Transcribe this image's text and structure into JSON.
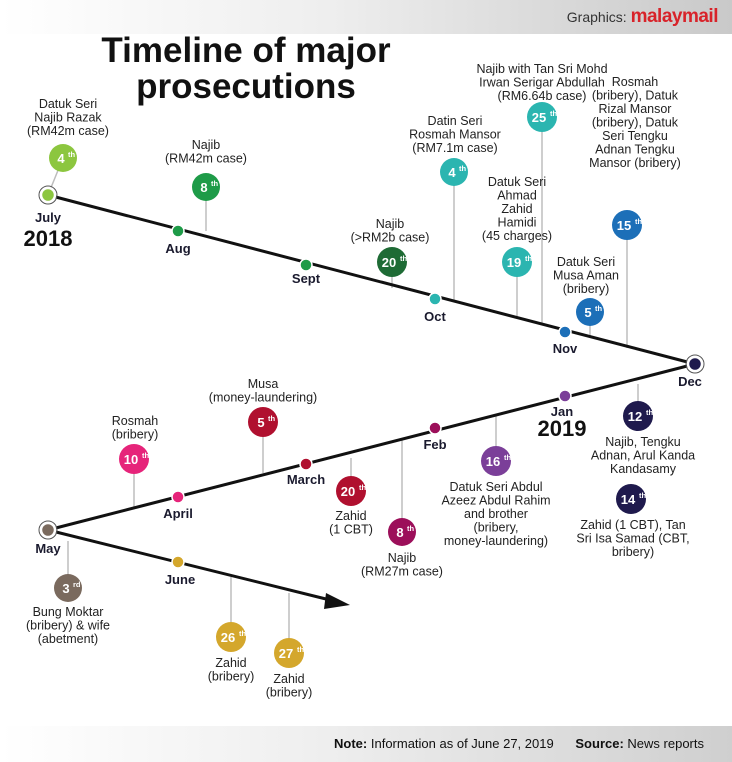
{
  "header": {
    "credit_prefix": "Graphics:",
    "credit_brand": "malaymail"
  },
  "title": "Timeline of major prosecutions",
  "footer": {
    "note_label": "Note:",
    "note_text": "Information as of June 27, 2019",
    "source_label": "Source:",
    "source_text": "News reports"
  },
  "colors": {
    "line": "#111111",
    "leader": "#bdbdbd"
  },
  "months": [
    {
      "id": "jul",
      "label": "July",
      "year": "2018",
      "color": "#8cc63f"
    },
    {
      "id": "aug",
      "label": "Aug",
      "color": "#1e9b48"
    },
    {
      "id": "sep",
      "label": "Sept",
      "color": "#1e9b48"
    },
    {
      "id": "oct",
      "label": "Oct",
      "color": "#2bb5b0"
    },
    {
      "id": "nov",
      "label": "Nov",
      "color": "#1c6fb8"
    },
    {
      "id": "dec",
      "label": "Dec",
      "color": "#1f1a4d"
    },
    {
      "id": "jan",
      "label": "Jan",
      "year": "2019",
      "color": "#7b3f99"
    },
    {
      "id": "feb",
      "label": "Feb",
      "color": "#9c0f5a"
    },
    {
      "id": "mar",
      "label": "March",
      "color": "#b0102f"
    },
    {
      "id": "apr",
      "label": "April",
      "color": "#e6247a"
    },
    {
      "id": "may",
      "label": "May",
      "color": "#7a6a5e"
    },
    {
      "id": "jun",
      "label": "June",
      "color": "#d4a72c"
    }
  ],
  "events": [
    {
      "id": "jul-4",
      "month": "jul",
      "day": "4",
      "suffix": "th",
      "color": "#8cc63f",
      "text": [
        "Datuk Seri",
        "Najib Razak",
        "(RM42m case)"
      ]
    },
    {
      "id": "aug-8",
      "month": "aug",
      "day": "8",
      "suffix": "th",
      "color": "#1e9b48",
      "text": [
        "Najib",
        "(RM42m case)"
      ]
    },
    {
      "id": "sep-20",
      "month": "sep",
      "day": "20",
      "suffix": "th",
      "color": "#1e6b35",
      "text": [
        "Najib",
        "(>RM2b case)"
      ]
    },
    {
      "id": "oct-4",
      "month": "oct",
      "day": "4",
      "suffix": "th",
      "color": "#2bb5b0",
      "text": [
        "Datin Seri",
        "Rosmah Mansor",
        "(RM7.1m case)"
      ]
    },
    {
      "id": "oct-19",
      "month": "oct",
      "day": "19",
      "suffix": "th",
      "color": "#2bb5b0",
      "text": [
        "Datuk Seri",
        "Ahmad",
        "Zahid",
        "Hamidi",
        "(45 charges)"
      ]
    },
    {
      "id": "oct-25",
      "month": "oct",
      "day": "25",
      "suffix": "th",
      "color": "#2bb5b0",
      "text": [
        "Najib with Tan Sri Mohd",
        "Irwan Serigar Abdullah",
        "(RM6.64b case)"
      ]
    },
    {
      "id": "nov-5",
      "month": "nov",
      "day": "5",
      "suffix": "th",
      "color": "#1c6fb8",
      "text": [
        "Datuk Seri",
        "Musa Aman",
        "(bribery)"
      ]
    },
    {
      "id": "nov-15",
      "month": "nov",
      "day": "15",
      "suffix": "th",
      "color": "#1c6fb8",
      "text": [
        "Rosmah",
        "(bribery), Datuk",
        "Rizal Mansor",
        "(bribery), Datuk",
        "Seri Tengku",
        "Adnan Tengku",
        "Mansor (bribery)"
      ]
    },
    {
      "id": "dec-12",
      "month": "dec",
      "day": "12",
      "suffix": "th",
      "color": "#1f1a4d",
      "text": [
        "Najib, Tengku",
        "Adnan, Arul Kanda",
        "Kandasamy"
      ]
    },
    {
      "id": "dec-14",
      "month": "dec",
      "day": "14",
      "suffix": "th",
      "color": "#1f1a4d",
      "text": [
        "Zahid (1 CBT), Tan",
        "Sri Isa Samad (CBT,",
        "bribery)"
      ]
    },
    {
      "id": "jan-16",
      "month": "jan",
      "day": "16",
      "suffix": "th",
      "color": "#7b3f99",
      "text": [
        "Datuk Seri Abdul",
        "Azeez Abdul Rahim",
        "and brother",
        "(bribery,",
        "money-laundering)"
      ]
    },
    {
      "id": "feb-8",
      "month": "feb",
      "day": "8",
      "suffix": "th",
      "color": "#9c0f5a",
      "text": [
        "Najib",
        "(RM27m case)"
      ]
    },
    {
      "id": "mar-5",
      "month": "mar",
      "day": "5",
      "suffix": "th",
      "color": "#b0102f",
      "text": [
        "Musa",
        "(money-laundering)"
      ]
    },
    {
      "id": "mar-20",
      "month": "mar",
      "day": "20",
      "suffix": "th",
      "color": "#b0102f",
      "text": [
        "Zahid",
        "(1 CBT)"
      ]
    },
    {
      "id": "apr-10",
      "month": "apr",
      "day": "10",
      "suffix": "th",
      "color": "#e6247a",
      "text": [
        "Rosmah",
        "(bribery)"
      ]
    },
    {
      "id": "may-3",
      "month": "may",
      "day": "3",
      "suffix": "rd",
      "color": "#7a6a5e",
      "text": [
        "Bung Moktar",
        "(bribery) & wife",
        "(abetment)"
      ]
    },
    {
      "id": "jun-26",
      "month": "jun",
      "day": "26",
      "suffix": "th",
      "color": "#d4a72c",
      "text": [
        "Zahid",
        "(bribery)"
      ]
    },
    {
      "id": "jun-27",
      "month": "jun",
      "day": "27",
      "suffix": "th",
      "color": "#d4a72c",
      "text": [
        "Zahid",
        "(bribery)"
      ]
    }
  ]
}
